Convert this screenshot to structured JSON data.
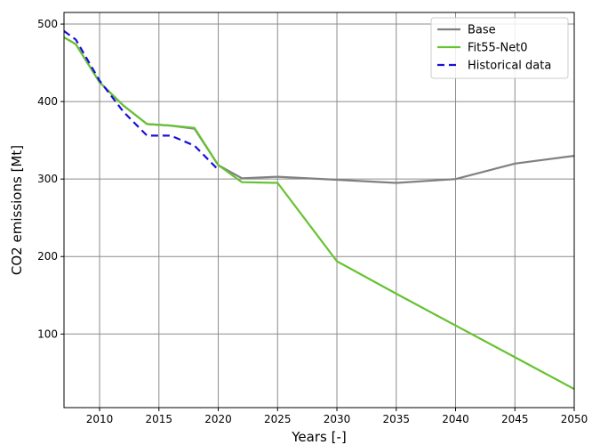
{
  "chart_data": {
    "type": "line",
    "xlabel": "Years [-]",
    "ylabel": "CO2 emissions [Mt]",
    "xlim": [
      2007,
      2050
    ],
    "ylim": [
      5,
      515
    ],
    "xticks": [
      2010,
      2015,
      2020,
      2025,
      2030,
      2035,
      2040,
      2045,
      2050
    ],
    "yticks": [
      100,
      200,
      300,
      400,
      500
    ],
    "grid": true,
    "legend_position": "top-right",
    "series": [
      {
        "name": "Base",
        "color": "#808080",
        "style": "solid",
        "x": [
          2007,
          2008,
          2010,
          2012,
          2014,
          2016,
          2018,
          2020,
          2022,
          2025,
          2030,
          2035,
          2040,
          2045,
          2050
        ],
        "y": [
          483,
          474,
          425,
          395,
          371,
          369,
          365,
          318,
          301,
          303,
          299,
          295,
          300,
          320,
          330
        ]
      },
      {
        "name": "Fit55-Net0",
        "color": "#66c232",
        "style": "solid",
        "x": [
          2007,
          2008,
          2010,
          2012,
          2014,
          2016,
          2018,
          2020,
          2022,
          2025,
          2030,
          2035,
          2040,
          2045,
          2050
        ],
        "y": [
          483,
          474,
          425,
          395,
          371,
          369,
          366,
          318,
          296,
          295,
          194,
          152,
          111,
          70,
          29
        ]
      },
      {
        "name": "Historical data",
        "color": "#1a0fd8",
        "style": "dashed",
        "x": [
          2007,
          2008,
          2010,
          2012,
          2014,
          2016,
          2018,
          2020
        ],
        "y": [
          491,
          480,
          427,
          387,
          356,
          356,
          343,
          312
        ]
      }
    ]
  }
}
